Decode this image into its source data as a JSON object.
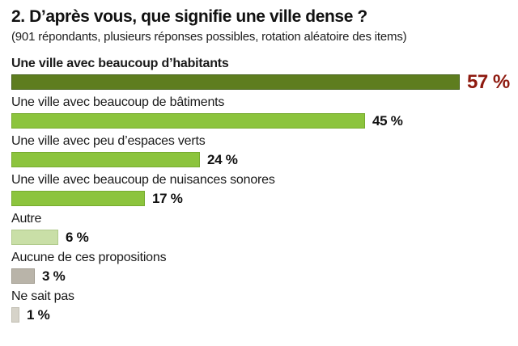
{
  "header": {
    "title": "2. D’après vous, que signifie une ville dense ?",
    "subtitle": "(901 répondants, plusieurs réponses possibles, rotation aléatoire des items)"
  },
  "chart_data": {
    "type": "bar",
    "orientation": "horizontal",
    "unit": "%",
    "xlim": [
      0,
      60
    ],
    "grid": false,
    "legend": "none",
    "categories": [
      "Une ville avec beaucoup d’habitants",
      "Une ville avec beaucoup de bâtiments",
      "Une ville avec peu d’espaces verts",
      "Une ville avec beaucoup de nuisances sonores",
      "Autre",
      "Aucune de ces propositions",
      "Ne sait pas"
    ],
    "values": [
      57,
      45,
      24,
      17,
      6,
      3,
      1
    ],
    "colors": {
      "dark_green": "#5e7d1f",
      "bright_green": "#8cc43d",
      "pale_green": "#c9dfa7",
      "taupe_gray": "#b9b4a9",
      "light_gray": "#d6d3c9",
      "accent_red": "#8e1a0f"
    },
    "rows": [
      {
        "label": "Une ville avec beaucoup d’habitants",
        "value": 57,
        "value_label": "57 %",
        "fill": "#5e7d1f",
        "border": "#45601a",
        "emphasis": true
      },
      {
        "label": "Une ville avec beaucoup de bâtiments",
        "value": 45,
        "value_label": "45 %",
        "fill": "#8cc43d",
        "border": "#77ab2f",
        "emphasis": false
      },
      {
        "label": "Une ville avec peu d’espaces verts",
        "value": 24,
        "value_label": "24 %",
        "fill": "#8cc43d",
        "border": "#77ab2f",
        "emphasis": false
      },
      {
        "label": "Une ville avec beaucoup de nuisances sonores",
        "value": 17,
        "value_label": "17 %",
        "fill": "#8cc43d",
        "border": "#77ab2f",
        "emphasis": false
      },
      {
        "label": "Autre",
        "value": 6,
        "value_label": "6 %",
        "fill": "#c9dfa7",
        "border": "#b0ca8b",
        "emphasis": false
      },
      {
        "label": "Aucune de ces propositions",
        "value": 3,
        "value_label": "3 %",
        "fill": "#b9b4a9",
        "border": "#a19c90",
        "emphasis": false
      },
      {
        "label": "Ne sait pas",
        "value": 1,
        "value_label": "1 %",
        "fill": "#d6d3c9",
        "border": "#c1beb2",
        "emphasis": false
      }
    ]
  }
}
